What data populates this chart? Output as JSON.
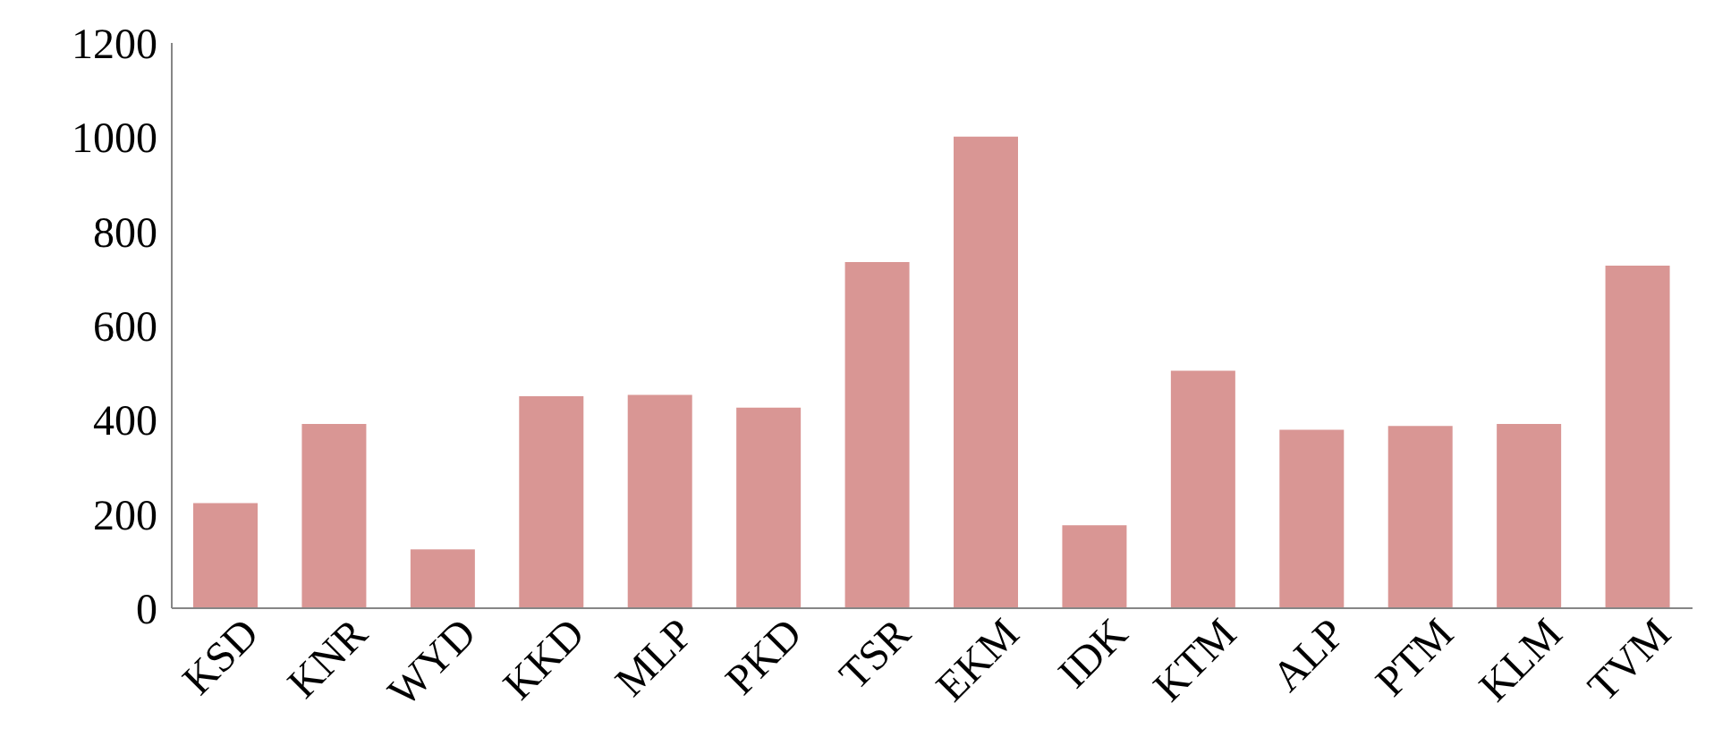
{
  "chart_data": {
    "type": "bar",
    "categories": [
      "KSD",
      "KNR",
      "WYD",
      "KKD",
      "MLP",
      "PKD",
      "TSR",
      "EKM",
      "IDK",
      "KTM",
      "ALP",
      "PTM",
      "KLM",
      "TVM"
    ],
    "values": [
      223,
      391,
      125,
      450,
      453,
      426,
      735,
      1001,
      176,
      504,
      379,
      387,
      391,
      727
    ],
    "color": "#d99694",
    "ylim": [
      0,
      1200
    ],
    "yticks": [
      0,
      200,
      400,
      600,
      800,
      1000,
      1200
    ],
    "grid": false
  }
}
